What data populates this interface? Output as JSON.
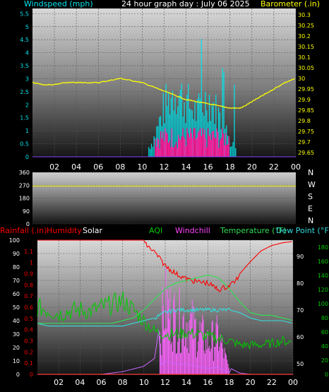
{
  "top": {
    "title": "24 hour graph day : July 06 2025",
    "left_label": "Windspeed (mph)",
    "right_label": "Barometer (.in)",
    "left_ticks": [
      "0",
      "0.5",
      "1",
      "1.5",
      "2",
      "2.5",
      "3",
      "3.5",
      "4",
      "4.5",
      "5",
      "5.5"
    ],
    "right_ticks": [
      "29.65",
      "29.7",
      "29.75",
      "29.8",
      "29.85",
      "29.9",
      "29.95",
      "30",
      "30.05",
      "30.1",
      "30.15",
      "30.2",
      "30.25",
      "30.3"
    ]
  },
  "x_ticks": [
    "02",
    "04",
    "06",
    "08",
    "10",
    "12",
    "14",
    "16",
    "18",
    "20",
    "22",
    "00"
  ],
  "mid": {
    "left_ticks": [
      "0",
      "90",
      "180",
      "270",
      "360"
    ],
    "compass": [
      "N",
      "W",
      "S",
      "E",
      "N"
    ]
  },
  "bottom": {
    "labels": {
      "rain": "Rainfall (.in)",
      "humidity": "Humidity",
      "solar": "Solar",
      "aqi": "AQI",
      "windchill": "Windchill",
      "temperature": "Temperature (°F)",
      "dewpoint": "Dew Point (°F)"
    },
    "rain_ticks": [
      "0",
      "0.1",
      "0.2",
      "0.3",
      "0.4",
      "0.5",
      "0.6",
      "0.7",
      "0.8",
      "0.9",
      "1",
      "1.1"
    ],
    "hum_ticks": [
      "0",
      "10",
      "20",
      "30",
      "40",
      "50",
      "60",
      "70",
      "80",
      "90",
      "100"
    ],
    "temp_ticks": [
      "50",
      "60",
      "70",
      "80",
      "90"
    ],
    "aqi_ticks": [
      "0",
      "20",
      "40",
      "60",
      "80",
      "100",
      "120",
      "140",
      "160",
      "180"
    ]
  },
  "colors": {
    "wind_gust": "#00e5ee",
    "wind_avg": "#ff1493",
    "barometer": "#ffff00",
    "direction": "#ffff00",
    "rain": "#ff0000",
    "humidity": "#ff0000",
    "solar": "#ff66ff",
    "aqi": "#00cc00",
    "windchill": "#ff44ff",
    "temperature": "#33dd55",
    "dewpoint": "#33dddd"
  },
  "chart_data": [
    {
      "type": "line",
      "ylabel": "Windspeed (mph)",
      "y2label": "Barometer (.in)",
      "ylim": [
        0,
        5.7
      ],
      "y2lim": [
        29.63,
        30.33
      ],
      "x_hours": [
        0,
        1,
        2,
        3,
        4,
        5,
        6,
        7,
        8,
        9,
        10,
        11,
        12,
        13,
        14,
        15,
        16,
        17,
        18,
        19,
        20,
        21,
        22,
        23,
        24
      ],
      "series": [
        {
          "name": "Barometer",
          "axis": "right",
          "values": [
            29.98,
            29.97,
            29.97,
            29.98,
            29.98,
            29.98,
            29.98,
            29.99,
            30.0,
            29.99,
            29.98,
            29.96,
            29.94,
            29.92,
            29.9,
            29.89,
            29.88,
            29.87,
            29.86,
            29.86,
            29.89,
            29.92,
            29.95,
            29.98,
            30.0
          ]
        },
        {
          "name": "Windspeed",
          "axis": "left",
          "values": [
            0,
            0,
            0,
            0,
            0,
            0,
            0,
            0,
            0,
            0,
            0,
            0.6,
            1.8,
            2.5,
            2.0,
            1.6,
            2.2,
            1.5,
            0.6,
            0,
            0,
            0,
            0,
            0,
            0
          ]
        }
      ]
    },
    {
      "type": "line",
      "ylabel": "Wind direction",
      "ylim": [
        0,
        360
      ],
      "x_hours": [
        0,
        24
      ],
      "series": [
        {
          "name": "Wind direction",
          "values": [
            265,
            265
          ]
        }
      ]
    },
    {
      "type": "line",
      "ylim": [
        0,
        100
      ],
      "x_hours": [
        0,
        1,
        2,
        3,
        4,
        5,
        6,
        7,
        8,
        9,
        10,
        11,
        12,
        13,
        14,
        15,
        16,
        17,
        18,
        19,
        20,
        21,
        22,
        23,
        24
      ],
      "series": [
        {
          "name": "Humidity",
          "values": [
            100,
            100,
            100,
            100,
            100,
            100,
            100,
            100,
            100,
            100,
            100,
            93,
            83,
            77,
            73,
            71,
            70,
            65,
            68,
            75,
            84,
            92,
            96,
            98,
            99
          ]
        },
        {
          "name": "Temperature",
          "values": [
            65,
            65,
            65,
            65,
            65,
            65,
            65,
            65,
            66,
            67,
            70,
            74,
            78,
            80,
            81,
            82,
            83,
            82,
            78,
            73,
            69,
            68,
            68,
            67,
            66
          ]
        },
        {
          "name": "Dew Point",
          "values": [
            65,
            64,
            64,
            64,
            64,
            64,
            64,
            64,
            64,
            65,
            66,
            67,
            69,
            70,
            70,
            70,
            70,
            70,
            70,
            69,
            67,
            66,
            66,
            66,
            65
          ]
        },
        {
          "name": "AQI",
          "values": [
            50,
            48,
            45,
            47,
            48,
            47,
            50,
            52,
            55,
            48,
            40,
            32,
            30,
            30,
            31,
            30,
            28,
            27,
            25,
            22,
            22,
            22,
            23,
            25,
            24
          ]
        },
        {
          "name": "Solar",
          "values": [
            0,
            0,
            0,
            0,
            0,
            0,
            0,
            1,
            2,
            4,
            6,
            12,
            65,
            50,
            50,
            40,
            30,
            35,
            5,
            1,
            0,
            0,
            0,
            0,
            0
          ]
        },
        {
          "name": "Rainfall",
          "values": [
            0,
            0,
            0,
            0,
            0,
            0,
            0,
            0,
            0,
            0,
            0,
            0,
            0,
            0,
            0,
            0,
            0,
            0,
            0,
            0,
            0,
            0,
            0,
            0,
            0
          ]
        }
      ]
    }
  ]
}
